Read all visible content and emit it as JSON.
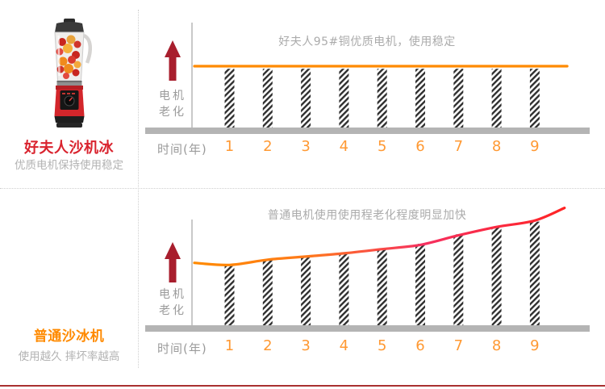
{
  "page": {
    "background": "#FFFFFF",
    "bottom_border_color": "#A93030"
  },
  "left_panel": {
    "product_image": "red-blender-with-fruits",
    "top": {
      "name": "好夫人沙机冰",
      "name_color": "#D9232E",
      "caption": "优质电机保持使用稳定"
    },
    "bottom": {
      "name": "普通沙冰机",
      "name_color": "#FF8A00",
      "caption": "使用越久 摔坏率越高"
    }
  },
  "chart_data": [
    {
      "type": "bar",
      "title": "好夫人95#铜优质电机，使用稳定",
      "ylabel": "电机老化",
      "ylabel_lines": [
        "电机",
        "老化"
      ],
      "xlabel": "时间(年)",
      "categories": [
        "1",
        "2",
        "3",
        "4",
        "5",
        "6",
        "7",
        "8",
        "9"
      ],
      "values_pct_of_plot": [
        56,
        56,
        56,
        56,
        56,
        56,
        56,
        56,
        56
      ],
      "line": {
        "shape": "flat-stable",
        "x_cat": [
          -0.92,
          8.85
        ],
        "values_pct_of_plot": [
          58.5,
          58.5
        ],
        "stops": [
          {
            "offset": 0,
            "color": "#FF8A00"
          },
          {
            "offset": 1,
            "color": "#FF8A00"
          }
        ]
      },
      "style": {
        "arrow_color": "#A81E2D",
        "axis_color": "#C9C9C9",
        "baseline_color": "#B4B4B4",
        "hatch_color": "#2F2F2F",
        "tick_color": "#FF9933",
        "label_color": "#9B9B9B",
        "title_color": "#ABABAB"
      }
    },
    {
      "type": "bar",
      "title": "普通电机使用使用程老化程度明显加快",
      "ylabel": "电机老化",
      "ylabel_lines": [
        "电机",
        "老化"
      ],
      "xlabel": "时间(年)",
      "categories": [
        "1",
        "2",
        "3",
        "4",
        "5",
        "6",
        "7",
        "8",
        "9"
      ],
      "values_pct_of_plot": [
        56,
        62,
        65,
        68,
        72,
        77,
        86,
        93,
        98
      ],
      "line": {
        "shape": "rising-accelerating",
        "x_cat": [
          -0.92,
          0,
          1,
          2,
          3,
          4,
          5,
          6,
          7,
          8,
          8.78
        ],
        "values_pct_of_plot": [
          59,
          57,
          62,
          65,
          68,
          72,
          76,
          85,
          93,
          99,
          111
        ],
        "stops": [
          {
            "offset": 0,
            "color": "#FF8A00"
          },
          {
            "offset": 0.3,
            "color": "#FF7A1A"
          },
          {
            "offset": 0.62,
            "color": "#F63060"
          },
          {
            "offset": 1,
            "color": "#FF2424"
          }
        ]
      },
      "style": {
        "arrow_color": "#A81E2D",
        "axis_color": "#C9C9C9",
        "baseline_color": "#B4B4B4",
        "hatch_color": "#2F2F2F",
        "tick_color": "#FF9933",
        "label_color": "#9B9B9B",
        "title_color": "#ABABAB"
      }
    }
  ]
}
